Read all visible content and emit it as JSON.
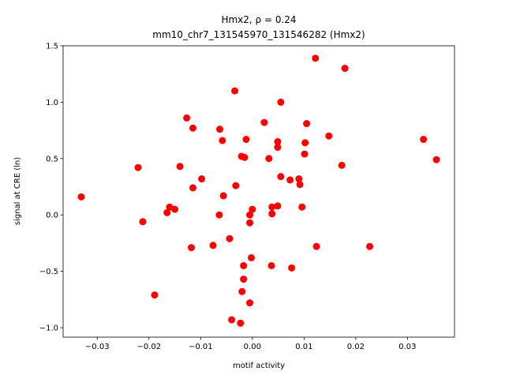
{
  "chart_data": {
    "type": "scatter",
    "title": "Hmx2, ρ = 0.24",
    "subtitle": "mm10_chr7_131545970_131546282 (Hmx2)",
    "x_label": "motif activity",
    "y_label": "signal at CRE (ln)",
    "color": "#ff0000",
    "xlim": [
      -0.0366,
      0.0391
    ],
    "ylim": [
      -1.084,
      1.5
    ],
    "xticks": [
      {
        "value": -0.03,
        "label": "−0.03"
      },
      {
        "value": -0.02,
        "label": "−0.02"
      },
      {
        "value": -0.01,
        "label": "−0.01"
      },
      {
        "value": 0,
        "label": "0.00"
      },
      0.01,
      0.02,
      0.03
    ],
    "yticks": [
      {
        "value": -1,
        "label": "−1.0"
      },
      {
        "value": -0.5,
        "label": "−0.5"
      },
      {
        "value": 0,
        "label": "0.0"
      },
      0.5,
      {
        "value": 1,
        "label": "1.0"
      },
      1.5
    ],
    "x": [
      -0.0331,
      -0.0221,
      -0.0212,
      -0.0189,
      -0.0165,
      -0.016,
      -0.015,
      -0.014,
      -0.0127,
      -0.0115,
      -0.0115,
      -0.0118,
      -0.0098,
      -0.0076,
      -0.0063,
      -0.0058,
      -0.0064,
      -0.0056,
      -0.0044,
      -0.0034,
      -0.0032,
      -0.004,
      -0.0023,
      -0.0021,
      -0.0015,
      -0.0012,
      -0.002,
      -0.0017,
      -0.0017,
      -0.0005,
      -0.0005,
      -0.0005,
      -0.0002,
      0.0,
      0.0023,
      0.0032,
      0.0038,
      0.0038,
      0.0037,
      0.0049,
      0.0049,
      0.0049,
      0.0055,
      0.0055,
      0.0073,
      0.0076,
      0.009,
      0.0092,
      0.0096,
      0.0101,
      0.0102,
      0.0105,
      0.0122,
      0.0124,
      0.0148,
      0.0173,
      0.0179,
      0.0227,
      0.0331,
      0.0356
    ],
    "values": [
      0.16,
      0.42,
      -0.06,
      -0.71,
      0.02,
      0.07,
      0.05,
      0.43,
      0.86,
      0.77,
      0.24,
      -0.29,
      0.32,
      -0.27,
      0.76,
      0.66,
      0.0,
      0.17,
      -0.21,
      1.1,
      0.26,
      -0.93,
      -0.96,
      0.52,
      0.51,
      0.67,
      -0.68,
      -0.57,
      -0.45,
      0.0,
      -0.07,
      -0.78,
      -0.38,
      0.05,
      0.82,
      0.5,
      0.07,
      0.01,
      -0.45,
      0.6,
      0.65,
      0.08,
      1.0,
      0.34,
      0.31,
      -0.47,
      0.32,
      0.27,
      0.07,
      0.54,
      0.64,
      0.81,
      1.39,
      -0.28,
      0.7,
      0.44,
      1.3,
      -0.28,
      0.67,
      0.49
    ]
  }
}
